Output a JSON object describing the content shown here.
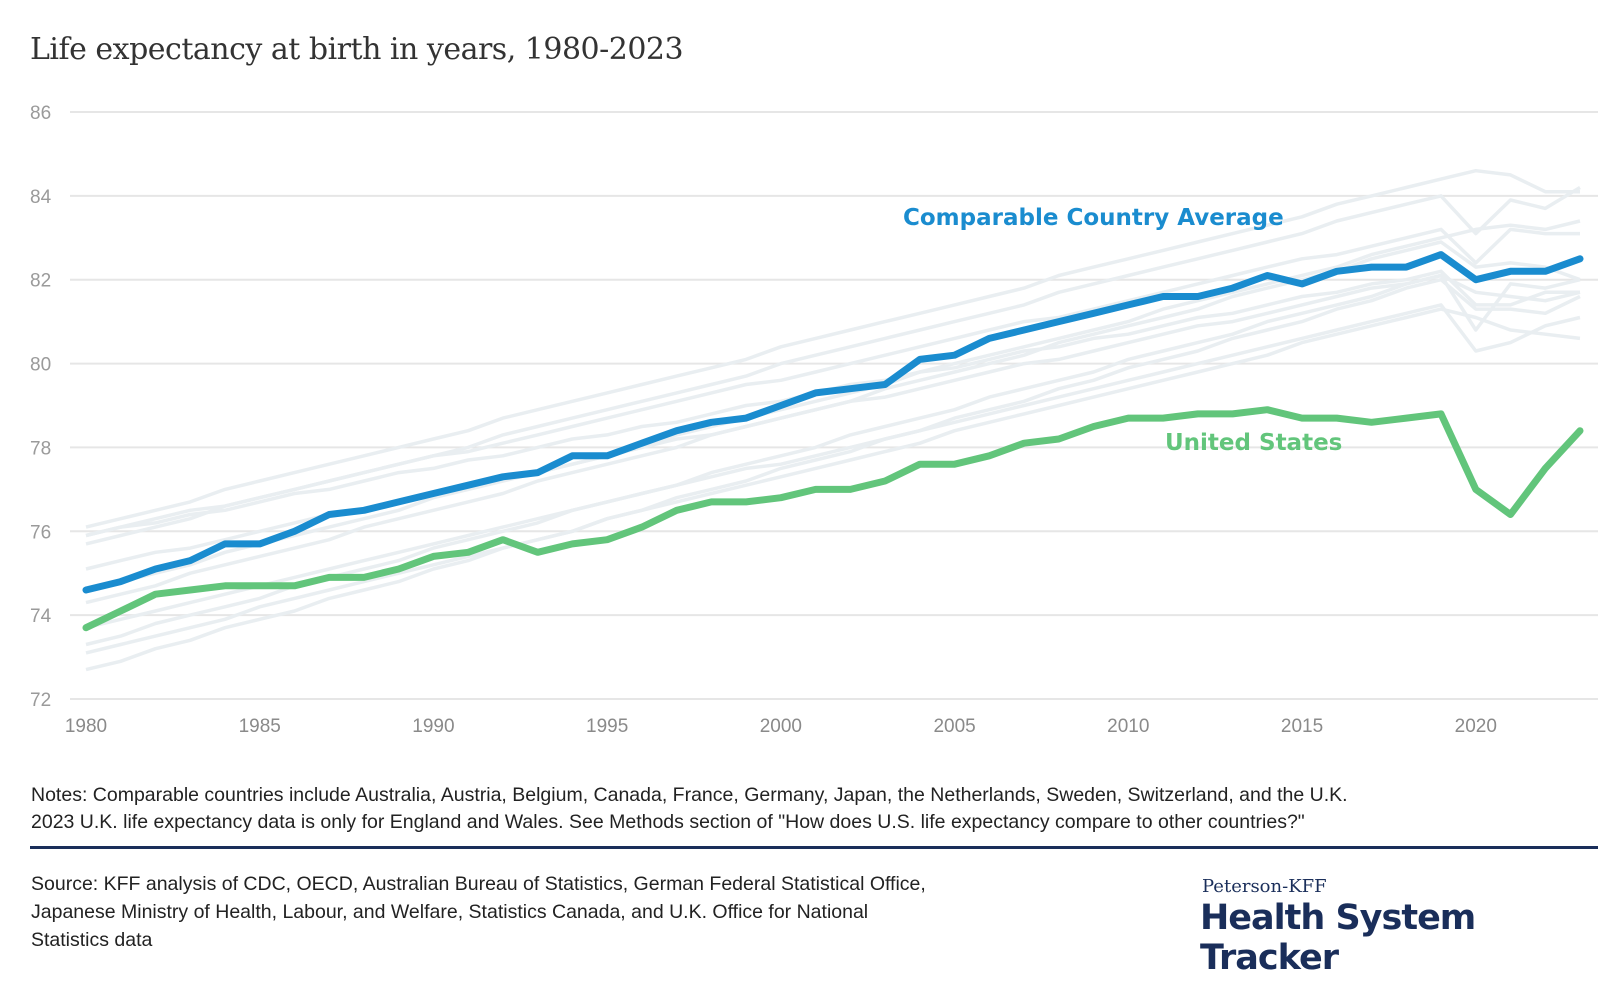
{
  "chart_data": {
    "type": "line",
    "title": "Life expectancy at birth in years, 1980-2023",
    "xlabel": "",
    "ylabel": "",
    "xlim": [
      1980,
      2023
    ],
    "ylim": [
      72,
      86
    ],
    "x_ticks": [
      "1980",
      "1985",
      "1990",
      "1995",
      "2000",
      "2005",
      "2010",
      "2015",
      "2020"
    ],
    "y_ticks": [
      "72",
      "74",
      "76",
      "78",
      "80",
      "82",
      "84",
      "86"
    ],
    "grid": "horizontal",
    "x": [
      1980,
      1981,
      1982,
      1983,
      1984,
      1985,
      1986,
      1987,
      1988,
      1989,
      1990,
      1991,
      1992,
      1993,
      1994,
      1995,
      1996,
      1997,
      1998,
      1999,
      2000,
      2001,
      2002,
      2003,
      2004,
      2005,
      2006,
      2007,
      2008,
      2009,
      2010,
      2011,
      2012,
      2013,
      2014,
      2015,
      2016,
      2017,
      2018,
      2019,
      2020,
      2021,
      2022,
      2023
    ],
    "series": [
      {
        "name": "Comparable Country Average",
        "color": "#1a8ccf",
        "highlight": true,
        "values": [
          74.6,
          74.8,
          75.1,
          75.3,
          75.7,
          75.7,
          76.0,
          76.4,
          76.5,
          76.7,
          76.9,
          77.1,
          77.3,
          77.4,
          77.8,
          77.8,
          78.1,
          78.4,
          78.6,
          78.7,
          79.0,
          79.3,
          79.4,
          79.5,
          80.1,
          80.2,
          80.6,
          80.8,
          81.0,
          81.2,
          81.4,
          81.6,
          81.6,
          81.8,
          82.1,
          81.9,
          82.2,
          82.3,
          82.3,
          82.6,
          82.0,
          82.2,
          82.2,
          82.5
        ]
      },
      {
        "name": "United States",
        "color": "#62c57b",
        "highlight": true,
        "values": [
          73.7,
          74.1,
          74.5,
          74.6,
          74.7,
          74.7,
          74.7,
          74.9,
          74.9,
          75.1,
          75.4,
          75.5,
          75.8,
          75.5,
          75.7,
          75.8,
          76.1,
          76.5,
          76.7,
          76.7,
          76.8,
          77.0,
          77.0,
          77.2,
          77.6,
          77.6,
          77.8,
          78.1,
          78.2,
          78.5,
          78.7,
          78.7,
          78.8,
          78.8,
          78.9,
          78.7,
          78.7,
          78.6,
          78.7,
          78.8,
          77.0,
          76.4,
          77.5,
          78.4
        ]
      }
    ],
    "background_series_color": "#e9eef1",
    "background_series": [
      {
        "values": [
          76.1,
          76.3,
          76.5,
          76.7,
          77.0,
          77.2,
          77.4,
          77.6,
          77.8,
          78.0,
          78.2,
          78.4,
          78.7,
          78.9,
          79.1,
          79.3,
          79.5,
          79.7,
          79.9,
          80.1,
          80.4,
          80.6,
          80.8,
          81.0,
          81.2,
          81.4,
          81.6,
          81.8,
          82.1,
          82.3,
          82.5,
          82.7,
          82.9,
          83.1,
          83.3,
          83.5,
          83.8,
          84.0,
          84.2,
          84.4,
          84.6,
          84.5,
          84.1,
          84.1
        ]
      },
      {
        "values": [
          75.7,
          75.9,
          76.1,
          76.3,
          76.6,
          76.8,
          77.0,
          77.2,
          77.4,
          77.6,
          77.8,
          78.0,
          78.3,
          78.5,
          78.7,
          78.9,
          79.1,
          79.3,
          79.5,
          79.7,
          80.0,
          80.2,
          80.4,
          80.6,
          80.8,
          81.0,
          81.2,
          81.4,
          81.7,
          81.9,
          82.1,
          82.3,
          82.5,
          82.7,
          82.9,
          83.1,
          83.4,
          83.6,
          83.8,
          84.0,
          83.1,
          83.9,
          83.7,
          84.2
        ]
      },
      {
        "values": [
          75.9,
          76.1,
          76.3,
          76.5,
          76.6,
          76.8,
          77.0,
          77.2,
          77.4,
          77.6,
          77.8,
          77.9,
          78.1,
          78.3,
          78.5,
          78.7,
          78.9,
          79.1,
          79.3,
          79.5,
          79.6,
          79.8,
          80.0,
          80.2,
          80.4,
          80.6,
          80.8,
          81.0,
          81.1,
          81.3,
          81.5,
          81.7,
          81.9,
          82.1,
          82.3,
          82.5,
          82.6,
          82.8,
          83.0,
          83.2,
          82.4,
          83.2,
          83.1,
          83.1
        ]
      },
      {
        "values": [
          74.6,
          74.8,
          75.0,
          75.2,
          75.5,
          75.7,
          75.9,
          76.1,
          76.3,
          76.5,
          76.8,
          77.0,
          77.2,
          77.4,
          77.6,
          77.8,
          78.0,
          78.3,
          78.5,
          78.7,
          78.9,
          79.1,
          79.3,
          79.5,
          79.8,
          80.0,
          80.2,
          80.4,
          80.6,
          80.8,
          81.0,
          81.3,
          81.5,
          81.7,
          81.9,
          82.1,
          82.3,
          82.6,
          82.8,
          83.0,
          83.2,
          83.3,
          83.2,
          83.4
        ]
      },
      {
        "values": [
          74.3,
          74.5,
          74.7,
          75.0,
          75.2,
          75.4,
          75.6,
          75.8,
          76.1,
          76.3,
          76.5,
          76.7,
          76.9,
          77.2,
          77.4,
          77.6,
          77.8,
          78.0,
          78.3,
          78.5,
          78.7,
          78.9,
          79.1,
          79.4,
          79.6,
          79.8,
          80.0,
          80.2,
          80.5,
          80.7,
          80.9,
          81.1,
          81.3,
          81.6,
          81.8,
          82.0,
          82.2,
          82.5,
          82.7,
          82.9,
          82.3,
          82.4,
          82.3,
          82.0
        ]
      },
      {
        "values": [
          75.9,
          76.1,
          76.2,
          76.4,
          76.5,
          76.7,
          76.9,
          77.0,
          77.2,
          77.4,
          77.5,
          77.7,
          77.8,
          78.0,
          78.2,
          78.3,
          78.5,
          78.6,
          78.8,
          79.0,
          79.1,
          79.3,
          79.5,
          79.6,
          79.8,
          79.9,
          80.1,
          80.3,
          80.4,
          80.6,
          80.7,
          80.9,
          81.1,
          81.2,
          81.4,
          81.6,
          81.7,
          81.9,
          82.0,
          82.2,
          81.4,
          81.4,
          81.7,
          81.7
        ]
      },
      {
        "values": [
          75.1,
          75.3,
          75.5,
          75.6,
          75.8,
          76.0,
          76.2,
          76.4,
          76.5,
          76.7,
          76.9,
          77.1,
          77.3,
          77.4,
          77.6,
          77.8,
          78.0,
          78.2,
          78.3,
          78.5,
          78.7,
          78.9,
          79.1,
          79.2,
          79.4,
          79.6,
          79.8,
          80.0,
          80.1,
          80.3,
          80.5,
          80.7,
          80.9,
          81.0,
          81.2,
          81.4,
          81.6,
          81.8,
          81.9,
          82.1,
          81.7,
          81.6,
          81.5,
          81.7
        ]
      },
      {
        "values": [
          72.7,
          72.9,
          73.2,
          73.4,
          73.7,
          73.9,
          74.1,
          74.4,
          74.6,
          74.8,
          75.1,
          75.3,
          75.6,
          75.8,
          76.0,
          76.3,
          76.5,
          76.8,
          77.0,
          77.2,
          77.5,
          77.7,
          77.9,
          78.2,
          78.4,
          78.7,
          78.9,
          79.1,
          79.4,
          79.6,
          79.9,
          80.1,
          80.3,
          80.6,
          80.8,
          81.0,
          81.3,
          81.5,
          81.8,
          82.0,
          81.3,
          81.3,
          81.2,
          81.6
        ]
      },
      {
        "values": [
          73.3,
          73.5,
          73.8,
          74.0,
          74.2,
          74.4,
          74.7,
          74.9,
          75.1,
          75.3,
          75.6,
          75.8,
          76.0,
          76.2,
          76.5,
          76.7,
          76.9,
          77.1,
          77.4,
          77.6,
          77.8,
          78.0,
          78.3,
          78.5,
          78.7,
          78.9,
          79.2,
          79.4,
          79.6,
          79.8,
          80.1,
          80.3,
          80.5,
          80.7,
          81.0,
          81.2,
          81.4,
          81.6,
          81.9,
          82.1,
          80.8,
          81.9,
          81.8,
          82.0
        ]
      },
      {
        "values": [
          73.1,
          73.3,
          73.5,
          73.7,
          73.9,
          74.2,
          74.4,
          74.6,
          74.8,
          75.0,
          75.2,
          75.4,
          75.6,
          75.8,
          76.0,
          76.3,
          76.5,
          76.7,
          76.9,
          77.1,
          77.3,
          77.5,
          77.7,
          77.9,
          78.1,
          78.4,
          78.6,
          78.8,
          79.0,
          79.2,
          79.4,
          79.6,
          79.8,
          80.0,
          80.2,
          80.5,
          80.7,
          80.9,
          81.1,
          81.3,
          81.1,
          80.8,
          80.7,
          80.6
        ]
      },
      {
        "values": [
          73.7,
          73.9,
          74.1,
          74.3,
          74.5,
          74.7,
          74.9,
          75.1,
          75.3,
          75.5,
          75.7,
          75.9,
          76.1,
          76.3,
          76.5,
          76.7,
          76.9,
          77.1,
          77.3,
          77.5,
          77.6,
          77.8,
          78.0,
          78.2,
          78.4,
          78.6,
          78.8,
          79.0,
          79.2,
          79.4,
          79.6,
          79.8,
          80.0,
          80.2,
          80.4,
          80.6,
          80.8,
          81.0,
          81.2,
          81.4,
          80.3,
          80.5,
          80.9,
          81.1
        ]
      }
    ],
    "annotations": [
      {
        "text": "Comparable Country Average",
        "color": "#1a8ccf"
      },
      {
        "text": "United States",
        "color": "#62c57b"
      }
    ]
  },
  "notes": [
    "Notes: Comparable countries include Australia, Austria, Belgium, Canada, France, Germany, Japan, the Netherlands, Sweden, Switzerland, and the U.K.",
    "2023 U.K. life expectancy data is only for England and Wales. See Methods section of \"How does U.S. life expectancy compare to other countries?\""
  ],
  "source": [
    "Source: KFF analysis of CDC, OECD, Australian Bureau of Statistics, German Federal Statistical Office,",
    "Japanese Ministry of Health, Labour, and Welfare, Statistics Canada, and U.K. Office for National",
    "Statistics data"
  ],
  "logo": {
    "small": "Peterson-KFF",
    "big": "Health System Tracker"
  }
}
